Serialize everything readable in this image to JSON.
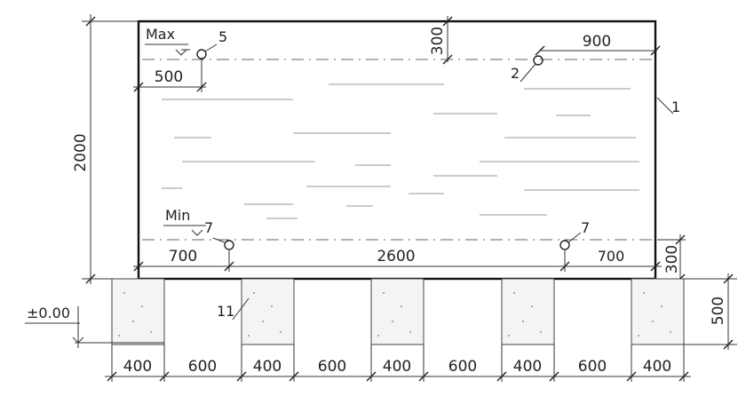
{
  "dimensions": {
    "tank_height": "2000",
    "tank_length": "2600",
    "top_offset": "300",
    "bottom_offset": "300",
    "right_spacing": "900",
    "left_spacing_top": "500",
    "left_spacing_bottom": "700",
    "right_spacing_bottom": "700",
    "pedestal_height": "500",
    "spans": [
      "400",
      "600",
      "400",
      "600",
      "400",
      "600",
      "400",
      "600",
      "400"
    ]
  },
  "levels": {
    "max_label": "Max",
    "min_label": "Min",
    "ground_elevation": "±0.00"
  },
  "callouts": {
    "c1": "1",
    "c2": "2",
    "c5": "5",
    "c7_left": "7",
    "c7_right": "7",
    "c11": "11"
  }
}
